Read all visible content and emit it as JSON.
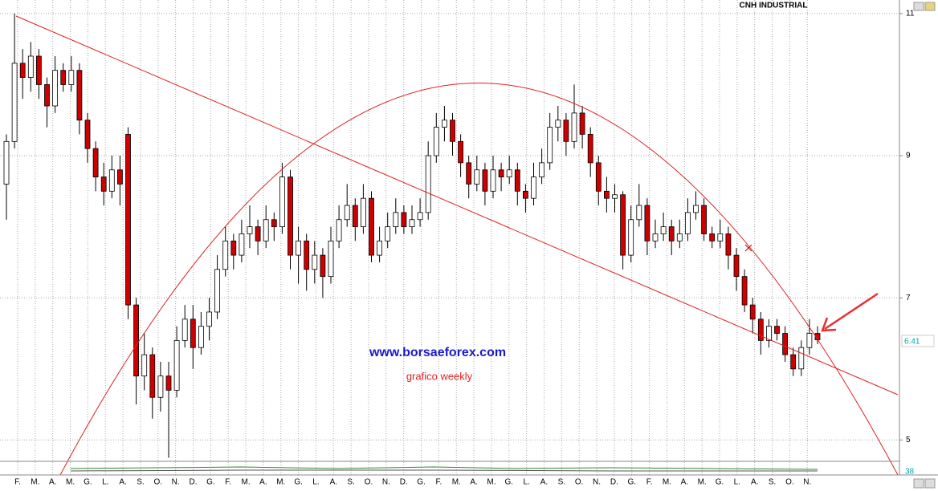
{
  "chart_data": {
    "type": "candlestick",
    "title": "CNH INDUSTRIAL",
    "annotations": [
      "www.borsaeforex.com",
      "grafico weekly"
    ],
    "categories": [
      "F.",
      "M.",
      "A.",
      "M.",
      "G.",
      "L.",
      "A.",
      "S.",
      "O.",
      "N.",
      "D.",
      "G.",
      "F.",
      "M.",
      "A.",
      "M.",
      "G.",
      "L.",
      "A.",
      "S.",
      "O.",
      "N.",
      "D.",
      "G.",
      "F.",
      "M.",
      "A.",
      "M.",
      "G.",
      "L.",
      "A.",
      "S.",
      "O.",
      "N.",
      "D.",
      "G.",
      "F.",
      "M.",
      "A.",
      "M.",
      "G.",
      "L.",
      "A.",
      "S.",
      "O.",
      "N."
    ],
    "ohlc": [
      [
        8.6,
        9.3,
        8.1,
        9.2
      ],
      [
        9.2,
        11.0,
        9.1,
        10.3
      ],
      [
        10.3,
        10.5,
        9.8,
        10.1
      ],
      [
        10.1,
        10.6,
        9.9,
        10.4
      ],
      [
        10.4,
        10.5,
        9.8,
        10.0
      ],
      [
        10.0,
        10.1,
        9.4,
        9.7
      ],
      [
        9.7,
        10.4,
        9.6,
        10.2
      ],
      [
        10.2,
        10.3,
        9.9,
        10.0
      ],
      [
        10.0,
        10.4,
        9.9,
        10.2
      ],
      [
        10.2,
        10.3,
        9.3,
        9.5
      ],
      [
        9.5,
        9.6,
        8.9,
        9.1
      ],
      [
        9.1,
        9.2,
        8.5,
        8.7
      ],
      [
        8.7,
        8.9,
        8.3,
        8.5
      ],
      [
        8.5,
        9.0,
        8.4,
        8.8
      ],
      [
        8.8,
        9.0,
        8.3,
        8.6
      ],
      [
        9.3,
        9.4,
        6.7,
        6.9
      ],
      [
        6.9,
        7.0,
        5.5,
        5.9
      ],
      [
        5.9,
        6.5,
        5.7,
        6.2
      ],
      [
        6.2,
        6.3,
        5.3,
        5.6
      ],
      [
        5.6,
        6.1,
        5.4,
        5.9
      ],
      [
        5.9,
        6.1,
        4.75,
        5.7
      ],
      [
        5.7,
        6.6,
        5.6,
        6.4
      ],
      [
        6.4,
        6.9,
        6.3,
        6.7
      ],
      [
        6.7,
        6.9,
        6.0,
        6.3
      ],
      [
        6.3,
        6.8,
        6.2,
        6.6
      ],
      [
        6.6,
        7.0,
        6.4,
        6.8
      ],
      [
        6.8,
        7.6,
        6.7,
        7.4
      ],
      [
        7.4,
        8.0,
        7.3,
        7.8
      ],
      [
        7.8,
        7.9,
        7.4,
        7.6
      ],
      [
        7.6,
        8.1,
        7.5,
        7.9
      ],
      [
        7.9,
        8.3,
        7.7,
        8.0
      ],
      [
        8.0,
        8.1,
        7.6,
        7.8
      ],
      [
        7.8,
        8.3,
        7.7,
        8.1
      ],
      [
        8.1,
        8.2,
        7.8,
        8.0
      ],
      [
        8.0,
        8.9,
        7.9,
        8.7
      ],
      [
        8.7,
        8.8,
        7.4,
        7.6
      ],
      [
        7.6,
        8.0,
        7.2,
        7.8
      ],
      [
        7.8,
        7.9,
        7.1,
        7.4
      ],
      [
        7.4,
        7.8,
        7.2,
        7.6
      ],
      [
        7.6,
        7.7,
        7.0,
        7.3
      ],
      [
        7.3,
        8.0,
        7.2,
        7.8
      ],
      [
        7.8,
        8.3,
        7.7,
        8.1
      ],
      [
        8.1,
        8.6,
        8.0,
        8.3
      ],
      [
        8.3,
        8.4,
        7.8,
        8.0
      ],
      [
        8.0,
        8.6,
        7.9,
        8.4
      ],
      [
        8.4,
        8.5,
        7.5,
        7.6
      ],
      [
        7.6,
        8.0,
        7.5,
        7.8
      ],
      [
        7.8,
        8.2,
        7.7,
        8.0
      ],
      [
        8.0,
        8.4,
        7.9,
        8.2
      ],
      [
        8.2,
        8.3,
        7.9,
        8.0
      ],
      [
        8.0,
        8.3,
        7.9,
        8.1
      ],
      [
        8.1,
        8.4,
        8.0,
        8.2
      ],
      [
        8.2,
        9.2,
        8.1,
        9.0
      ],
      [
        9.0,
        9.6,
        8.9,
        9.4
      ],
      [
        9.4,
        9.7,
        9.2,
        9.5
      ],
      [
        9.5,
        9.6,
        9.0,
        9.2
      ],
      [
        9.2,
        9.3,
        8.7,
        8.9
      ],
      [
        8.9,
        9.0,
        8.4,
        8.6
      ],
      [
        8.6,
        9.0,
        8.5,
        8.8
      ],
      [
        8.8,
        8.9,
        8.3,
        8.5
      ],
      [
        8.5,
        9.0,
        8.4,
        8.8
      ],
      [
        8.8,
        8.9,
        8.5,
        8.7
      ],
      [
        8.7,
        9.0,
        8.6,
        8.8
      ],
      [
        8.8,
        8.9,
        8.3,
        8.5
      ],
      [
        8.5,
        8.6,
        8.2,
        8.4
      ],
      [
        8.4,
        8.9,
        8.3,
        8.7
      ],
      [
        8.7,
        9.1,
        8.6,
        8.9
      ],
      [
        8.9,
        9.6,
        8.8,
        9.4
      ],
      [
        9.4,
        9.7,
        9.2,
        9.5
      ],
      [
        9.5,
        9.6,
        9.0,
        9.2
      ],
      [
        9.2,
        10.0,
        9.1,
        9.6
      ],
      [
        9.6,
        9.7,
        9.1,
        9.3
      ],
      [
        9.3,
        9.4,
        8.7,
        8.9
      ],
      [
        8.9,
        9.0,
        8.3,
        8.5
      ],
      [
        8.5,
        8.7,
        8.2,
        8.4
      ],
      [
        8.4,
        8.6,
        8.2,
        8.45
      ],
      [
        8.45,
        8.5,
        7.4,
        7.6
      ],
      [
        7.6,
        8.3,
        7.5,
        8.1
      ],
      [
        8.1,
        8.6,
        8.0,
        8.3
      ],
      [
        8.3,
        8.4,
        7.6,
        7.8
      ],
      [
        7.8,
        8.1,
        7.7,
        7.9
      ],
      [
        7.9,
        8.2,
        7.8,
        8.0
      ],
      [
        8.0,
        8.1,
        7.6,
        7.8
      ],
      [
        7.8,
        8.1,
        7.7,
        7.9
      ],
      [
        7.9,
        8.4,
        7.8,
        8.2
      ],
      [
        8.2,
        8.5,
        8.1,
        8.3
      ],
      [
        8.3,
        8.4,
        7.8,
        7.9
      ],
      [
        7.9,
        8.0,
        7.7,
        7.8
      ],
      [
        7.8,
        8.1,
        7.7,
        7.9
      ],
      [
        7.9,
        8.0,
        7.4,
        7.6
      ],
      [
        7.6,
        7.7,
        7.1,
        7.3
      ],
      [
        7.3,
        7.4,
        6.8,
        6.9
      ],
      [
        6.9,
        7.0,
        6.5,
        6.7
      ],
      [
        6.7,
        6.8,
        6.2,
        6.4
      ],
      [
        6.4,
        6.7,
        6.3,
        6.6
      ],
      [
        6.6,
        6.7,
        6.4,
        6.5
      ],
      [
        6.5,
        6.6,
        6.1,
        6.2
      ],
      [
        6.2,
        6.3,
        5.9,
        6.0
      ],
      [
        6.0,
        6.4,
        5.9,
        6.3
      ],
      [
        6.3,
        6.7,
        6.2,
        6.5
      ],
      [
        6.5,
        6.6,
        6.35,
        6.41
      ]
    ],
    "ylim": [
      4.7,
      11.19
    ],
    "yticks": [
      5,
      7,
      9,
      11
    ],
    "grid": true,
    "last_price": 6.41,
    "indicator_value": 38,
    "colors": {
      "up": "#ffffff",
      "down": "#cc0000",
      "wick": "#000000"
    }
  }
}
